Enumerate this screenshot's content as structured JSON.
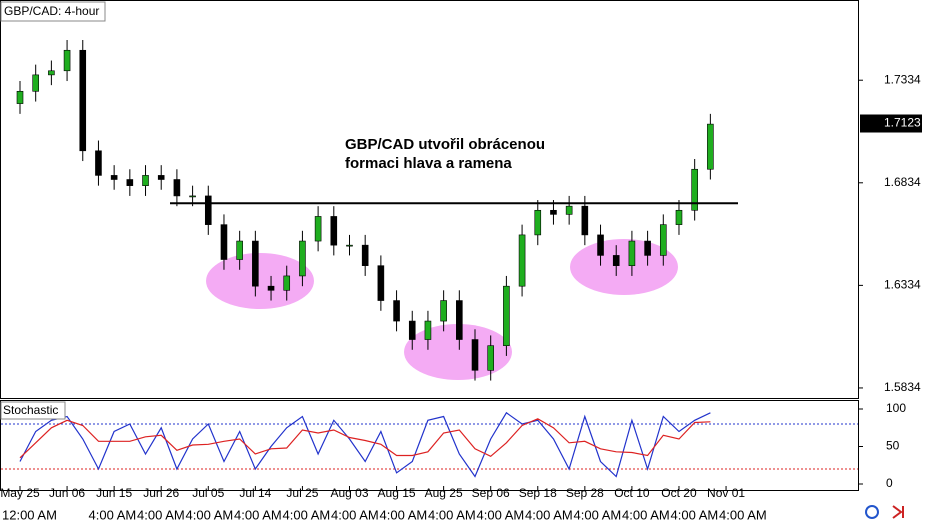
{
  "chart_data": [
    {
      "type": "candlestick",
      "title": "GBP/CAD: 4-hour",
      "annotation": [
        "GBP/CAD utvořil obrácenou",
        "formaci hlava a ramena"
      ],
      "categories": [
        "May 25",
        null,
        null,
        "Jun 06",
        null,
        null,
        "Jun 15",
        null,
        null,
        "Jun 26",
        null,
        null,
        "Jul 05",
        null,
        null,
        "Jul 14",
        null,
        null,
        "Jul 25",
        null,
        null,
        "Aug 03",
        null,
        null,
        "Aug 15",
        null,
        null,
        "Aug 25",
        null,
        null,
        "Sep 06",
        null,
        null,
        "Sep 18",
        null,
        null,
        "Sep 28",
        null,
        null,
        "Oct 10",
        null,
        null,
        "Oct 20",
        null,
        null,
        "Nov 01"
      ],
      "open": [
        1.722,
        1.728,
        1.736,
        1.738,
        1.748,
        1.699,
        1.687,
        1.685,
        1.682,
        1.687,
        1.685,
        1.677,
        1.677,
        1.663,
        1.646,
        1.655,
        1.633,
        1.631,
        1.638,
        1.655,
        1.667,
        1.653,
        1.653,
        1.643,
        1.626,
        1.616,
        1.607,
        1.616,
        1.626,
        1.607,
        1.592,
        1.604,
        1.633,
        1.658,
        1.67,
        1.668,
        1.672,
        1.658,
        1.648,
        1.643,
        1.655,
        1.648,
        1.663,
        1.67,
        1.69,
        null
      ],
      "high": [
        1.733,
        1.741,
        1.743,
        1.753,
        1.753,
        1.704,
        1.692,
        1.69,
        1.692,
        1.692,
        1.69,
        1.682,
        1.682,
        1.668,
        1.66,
        1.66,
        1.638,
        1.643,
        1.66,
        1.672,
        1.672,
        1.658,
        1.658,
        1.648,
        1.631,
        1.621,
        1.621,
        1.631,
        1.631,
        1.612,
        1.609,
        1.638,
        1.663,
        1.675,
        1.675,
        1.677,
        1.677,
        1.663,
        1.653,
        1.66,
        1.66,
        1.668,
        1.675,
        1.695,
        1.717,
        null
      ],
      "low": [
        1.717,
        1.723,
        1.731,
        1.733,
        1.694,
        1.682,
        1.68,
        1.677,
        1.677,
        1.68,
        1.672,
        1.672,
        1.658,
        1.641,
        1.641,
        1.628,
        1.626,
        1.626,
        1.633,
        1.65,
        1.648,
        1.648,
        1.638,
        1.621,
        1.611,
        1.602,
        1.602,
        1.611,
        1.602,
        1.587,
        1.587,
        1.599,
        1.628,
        1.653,
        1.663,
        1.663,
        1.653,
        1.643,
        1.638,
        1.638,
        1.643,
        1.643,
        1.658,
        1.665,
        1.685,
        null
      ],
      "close": [
        1.728,
        1.736,
        1.738,
        1.748,
        1.699,
        1.687,
        1.685,
        1.682,
        1.687,
        1.685,
        1.677,
        1.677,
        1.663,
        1.646,
        1.655,
        1.633,
        1.631,
        1.638,
        1.655,
        1.667,
        1.653,
        1.653,
        1.643,
        1.626,
        1.616,
        1.607,
        1.616,
        1.626,
        1.607,
        1.592,
        1.604,
        1.633,
        1.658,
        1.67,
        1.668,
        1.672,
        1.658,
        1.648,
        1.643,
        1.655,
        1.648,
        1.663,
        1.67,
        1.69,
        1.712,
        null
      ],
      "up_color": "#1fae1f",
      "down_color": "#000000",
      "neckline": 1.6734,
      "last_price": 1.7123,
      "ylim": [
        1.5785,
        1.7725
      ],
      "yticks": [
        1.5834,
        1.6334,
        1.6834,
        1.7334
      ],
      "time_labels": [
        "12:00 AM",
        "4:00 AM",
        "4:00 AM",
        "4:00 AM",
        "4:00 AM",
        "4:00 AM",
        "4:00 AM",
        "4:00 AM",
        "4:00 AM",
        "4:00 AM",
        "4:00 AM",
        "4:00 AM",
        "4:00 AM",
        "4:00 AM",
        "4:00 AM"
      ]
    },
    {
      "type": "line",
      "title": "Stochastic",
      "series": [
        {
          "color": "#2233cc",
          "values": [
            30,
            70,
            85,
            90,
            60,
            20,
            70,
            80,
            40,
            75,
            20,
            60,
            80,
            30,
            70,
            20,
            50,
            75,
            90,
            40,
            85,
            60,
            30,
            70,
            15,
            30,
            85,
            90,
            40,
            10,
            60,
            95,
            80,
            85,
            60,
            20,
            90,
            30,
            10,
            85,
            20,
            90,
            70,
            85,
            95,
            null
          ]
        },
        {
          "color": "#dd2222",
          "values": [
            35,
            55,
            75,
            85,
            78,
            57,
            57,
            57,
            63,
            65,
            45,
            52,
            53,
            57,
            60,
            40,
            47,
            48,
            72,
            68,
            72,
            62,
            58,
            53,
            38,
            38,
            43,
            68,
            72,
            47,
            37,
            55,
            78,
            87,
            75,
            55,
            57,
            47,
            43,
            42,
            38,
            65,
            60,
            82,
            83,
            null
          ]
        }
      ],
      "levels": [
        80,
        20
      ],
      "level_colors": [
        "#2233cc",
        "#dd2222"
      ],
      "ylim": [
        -8,
        112
      ],
      "yticks": [
        0,
        50,
        100
      ]
    }
  ]
}
